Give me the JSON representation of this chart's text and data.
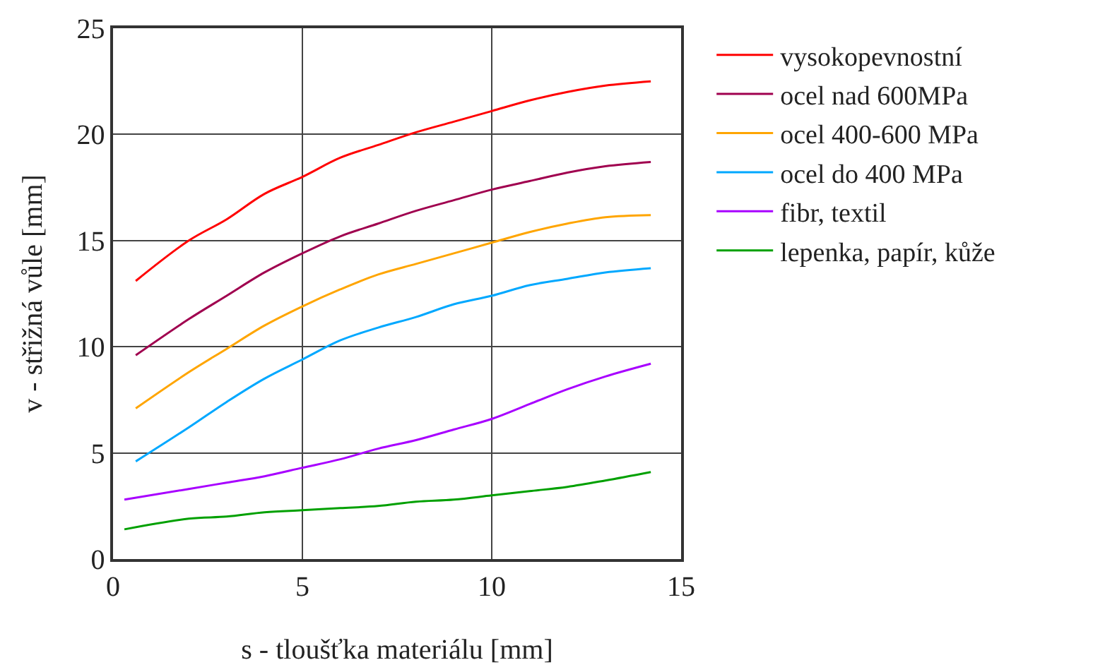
{
  "chart_data": {
    "type": "line",
    "xlabel": "s - tloušťka materiálu [mm]",
    "ylabel": "v - střižná vůle [mm]",
    "xlim": [
      0,
      15
    ],
    "xticks": [
      0,
      5,
      10,
      15
    ],
    "ylim": [
      0,
      25
    ],
    "yticks": [
      0,
      5,
      10,
      15,
      20,
      25
    ],
    "grid": true,
    "legend": "right",
    "marker": "none",
    "line_style": "solid",
    "series": [
      {
        "name": "vysokopevnostní",
        "color": "#ff0000",
        "x": [
          0.6,
          2,
          3,
          4,
          5,
          6,
          7,
          8,
          9,
          10,
          11,
          12,
          13,
          14.2
        ],
        "values": [
          13.1,
          15,
          16,
          17.2,
          18,
          18.9,
          19.5,
          20.1,
          20.6,
          21.1,
          21.6,
          22,
          22.3,
          22.5
        ]
      },
      {
        "name": "ocel nad 600MPa",
        "color": "#a0004f",
        "x": [
          0.6,
          2,
          3,
          4,
          5,
          6,
          7,
          8,
          9,
          10,
          11,
          12,
          13,
          14.2
        ],
        "values": [
          9.6,
          11.3,
          12.4,
          13.5,
          14.4,
          15.2,
          15.8,
          16.4,
          16.9,
          17.4,
          17.8,
          18.2,
          18.5,
          18.7
        ]
      },
      {
        "name": "ocel 400-600 MPa",
        "color": "#ffa500",
        "x": [
          0.6,
          2,
          3,
          4,
          5,
          6,
          7,
          8,
          9,
          10,
          11,
          12,
          13,
          14.2
        ],
        "values": [
          7.1,
          8.8,
          9.9,
          11,
          11.9,
          12.7,
          13.4,
          13.9,
          14.4,
          14.9,
          15.4,
          15.8,
          16.1,
          16.2
        ]
      },
      {
        "name": "ocel do 400 MPa",
        "color": "#00a8ff",
        "x": [
          0.6,
          2,
          3,
          4,
          5,
          6,
          7,
          8,
          9,
          10,
          11,
          12,
          13,
          14.2
        ],
        "values": [
          4.6,
          6.2,
          7.4,
          8.5,
          9.4,
          10.3,
          10.9,
          11.4,
          12,
          12.4,
          12.9,
          13.2,
          13.5,
          13.7
        ]
      },
      {
        "name": "fibr, textil",
        "color": "#a800ff",
        "x": [
          0.3,
          2,
          3,
          4,
          5,
          6,
          7,
          8,
          9,
          10,
          11,
          12,
          13,
          14.2
        ],
        "values": [
          2.8,
          3.3,
          3.6,
          3.9,
          4.3,
          4.7,
          5.2,
          5.6,
          6.1,
          6.6,
          7.3,
          8,
          8.6,
          9.2
        ]
      },
      {
        "name": "lepenka, papír, kůže",
        "color": "#00a000",
        "x": [
          0.3,
          2,
          3,
          4,
          5,
          6,
          7,
          8,
          9,
          10,
          11,
          12,
          13,
          14.2
        ],
        "values": [
          1.4,
          1.9,
          2,
          2.2,
          2.3,
          2.4,
          2.5,
          2.7,
          2.8,
          3,
          3.2,
          3.4,
          3.7,
          4.1
        ]
      }
    ]
  }
}
